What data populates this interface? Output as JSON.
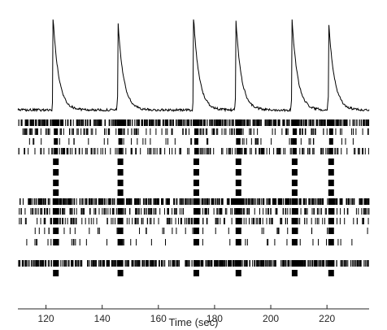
{
  "chart_data": {
    "type": "raster",
    "title": "",
    "xlabel": "Time (sec)",
    "ylabel": "",
    "xlim": [
      110,
      235
    ],
    "x_ticks": [
      120,
      140,
      160,
      180,
      200,
      220
    ],
    "x_tick_labels": [
      "120",
      "140",
      "160",
      "180",
      "200",
      "220"
    ],
    "grid": false,
    "legend": "none",
    "colors": {
      "trace": "#000000",
      "raster": "#000000",
      "axis": "#262626"
    },
    "calcium_trace": {
      "baseline": 0.04,
      "peak_amplitude": 1.0,
      "event_times": [
        122.5,
        145.5,
        172.5,
        187.5,
        207.5,
        220.5
      ],
      "decay_time_sec": 2.0
    },
    "raster": {
      "burst_times": [
        123.5,
        146.5,
        173.5,
        188.5,
        208.5,
        221.5
      ],
      "rows": [
        {
          "row": 1,
          "background_rate_hz": 4.0,
          "burst_rows": true
        },
        {
          "row": 2,
          "background_rate_hz": 1.2,
          "burst_rows": true
        },
        {
          "row": 3,
          "background_rate_hz": 0.4,
          "burst_rows": true
        },
        {
          "row": 4,
          "background_rate_hz": 1.5,
          "burst_rows": true
        },
        {
          "row": 5,
          "background_rate_hz": 0.0,
          "burst_rows": true
        },
        {
          "row": 6,
          "background_rate_hz": 0.0,
          "burst_rows": true
        },
        {
          "row": 7,
          "background_rate_hz": 0.0,
          "burst_rows": true
        },
        {
          "row": 8,
          "background_rate_hz": 0.0,
          "burst_rows": true
        },
        {
          "row": 9,
          "background_rate_hz": 4.0,
          "burst_rows": true
        },
        {
          "row": 10,
          "background_rate_hz": 1.6,
          "burst_rows": true
        },
        {
          "row": 11,
          "background_rate_hz": 1.2,
          "burst_rows": true
        },
        {
          "row": 12,
          "background_rate_hz": 0.3,
          "burst_rows": true
        },
        {
          "row": 13,
          "background_rate_hz": 0.3,
          "burst_rows": true
        },
        {
          "row": 14,
          "background_rate_hz": 0.0,
          "burst_rows": false
        },
        {
          "row": 15,
          "background_rate_hz": 4.0,
          "burst_rows": true
        },
        {
          "row": 16,
          "background_rate_hz": 0.0,
          "burst_rows": true
        }
      ]
    }
  }
}
